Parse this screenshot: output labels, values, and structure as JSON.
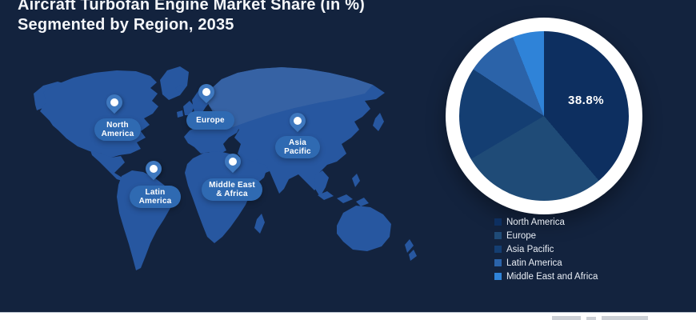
{
  "title": {
    "line1": "Aircraft Turbofan Engine Market Share (in %)",
    "line2": "Segmented by Region, 2035"
  },
  "map": {
    "regions": [
      {
        "id": "north-america",
        "label_lines": [
          "North",
          "America"
        ]
      },
      {
        "id": "europe",
        "label_lines": [
          "Europe"
        ]
      },
      {
        "id": "asia-pacific",
        "label_lines": [
          "Asia",
          "Pacific"
        ]
      },
      {
        "id": "latin-america",
        "label_lines": [
          "Latin",
          "America"
        ]
      },
      {
        "id": "middle-east-africa",
        "label_lines": [
          "Middle East",
          "& Africa"
        ]
      }
    ]
  },
  "chart_data": {
    "type": "pie",
    "title": "Aircraft Turbofan Engine Market Share (in %) Segmented by Region, 2035",
    "labels": [
      "North America",
      "Europe",
      "Asia Pacific",
      "Latin America",
      "Middle East and Africa"
    ],
    "values": [
      38.8,
      27.7,
      17.8,
      9.7,
      6.0
    ],
    "colors": [
      "#0d2f60",
      "#1f4b77",
      "#143e72",
      "#2b63a9",
      "#2f83d8"
    ],
    "value_label": "38.8%",
    "labeled_slice": "North America",
    "start_angle_deg": 0,
    "direction": "clockwise",
    "legend_position": "bottom-right"
  },
  "colors": {
    "background": "#13233e",
    "map_land": "#2757a0",
    "map_land_light": "#3a64a4",
    "pin": "#3e78bf",
    "pill": "#2f6ab2",
    "ring": "#ffffff",
    "text": "#f4f6f9",
    "legend_text": "#e8edf4",
    "footer": "#ffffff"
  }
}
